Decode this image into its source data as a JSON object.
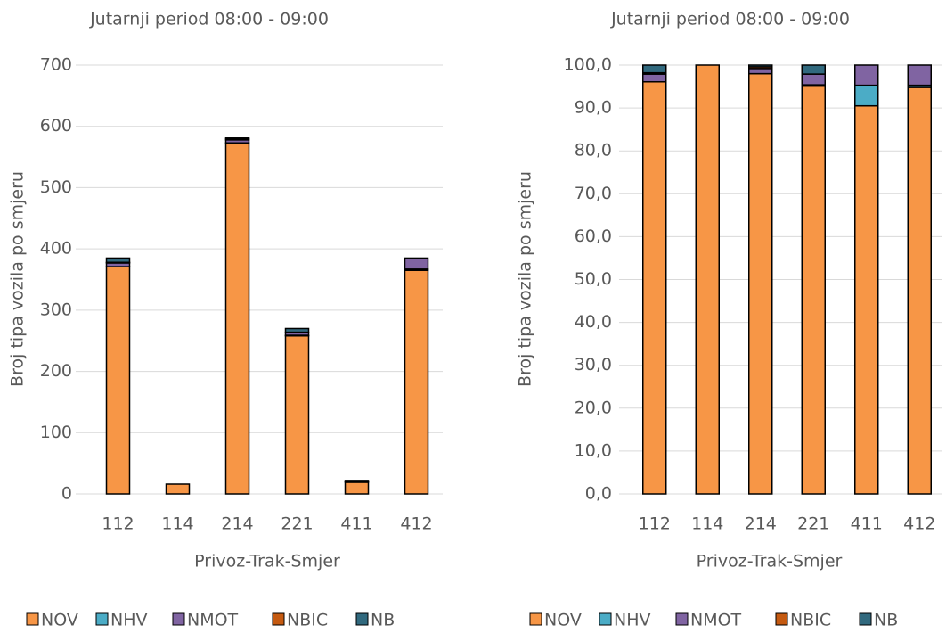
{
  "chart_data": [
    {
      "type": "bar",
      "stacked": true,
      "title": "Jutarnji period 08:00 - 09:00",
      "x_label": "Privoz-Trak-Smjer",
      "y_label": "Broj tipa vozila po smjeru",
      "categories": [
        "112",
        "114",
        "214",
        "221",
        "411",
        "412"
      ],
      "series": [
        {
          "name": "NOV",
          "color": "#f79646",
          "values": [
            371,
            16,
            573,
            258,
            19,
            365
          ]
        },
        {
          "name": "NHV",
          "color": "#4bacc6",
          "values": [
            0,
            0,
            0,
            1,
            1,
            2
          ]
        },
        {
          "name": "NMOT",
          "color": "#8064a2",
          "values": [
            6,
            0,
            5,
            5,
            2,
            18
          ]
        },
        {
          "name": "NBIC",
          "color": "#c55a11",
          "values": [
            1,
            0,
            2,
            0,
            0,
            0
          ]
        },
        {
          "name": "NB",
          "color": "#31697e",
          "values": [
            7,
            0,
            1,
            6,
            0,
            0
          ]
        }
      ],
      "ylim": [
        0,
        700
      ],
      "yticks": [
        0,
        100,
        200,
        300,
        400,
        500,
        600,
        700
      ],
      "grid": true
    },
    {
      "type": "bar",
      "stacked": true,
      "title": "Jutarnji period 08:00 - 09:00",
      "x_label": "Privoz-Trak-Smjer",
      "y_label": "Broj tipa vozila po smjeru",
      "categories": [
        "112",
        "114",
        "214",
        "221",
        "411",
        "412"
      ],
      "series": [
        {
          "name": "NOV",
          "color": "#f79646",
          "values": [
            96.1,
            100,
            98.0,
            95.1,
            90.5,
            94.8
          ]
        },
        {
          "name": "NHV",
          "color": "#4bacc6",
          "values": [
            0,
            0,
            0,
            0.3,
            4.8,
            0.5
          ]
        },
        {
          "name": "NMOT",
          "color": "#8064a2",
          "values": [
            1.8,
            0,
            1.2,
            2.5,
            4.7,
            4.7
          ]
        },
        {
          "name": "NBIC",
          "color": "#c55a11",
          "values": [
            0.3,
            0,
            0.4,
            0,
            0,
            0
          ]
        },
        {
          "name": "NB",
          "color": "#31697e",
          "values": [
            1.8,
            0,
            0.4,
            2.1,
            0,
            0
          ]
        }
      ],
      "ylim": [
        0,
        100
      ],
      "yticks": [
        {
          "value": 0,
          "label": "0,0"
        },
        {
          "value": 10,
          "label": "10,0"
        },
        {
          "value": 20,
          "label": "20,0"
        },
        {
          "value": 30,
          "label": "30,0"
        },
        {
          "value": 40,
          "label": "40,0"
        },
        {
          "value": 50,
          "label": "50,0"
        },
        {
          "value": 60,
          "label": "60,0"
        },
        {
          "value": 70,
          "label": "70,0"
        },
        {
          "value": 80,
          "label": "80,0"
        },
        {
          "value": 90,
          "label": "90,0"
        },
        {
          "value": 100,
          "label": "100,0"
        }
      ],
      "grid": true
    }
  ]
}
